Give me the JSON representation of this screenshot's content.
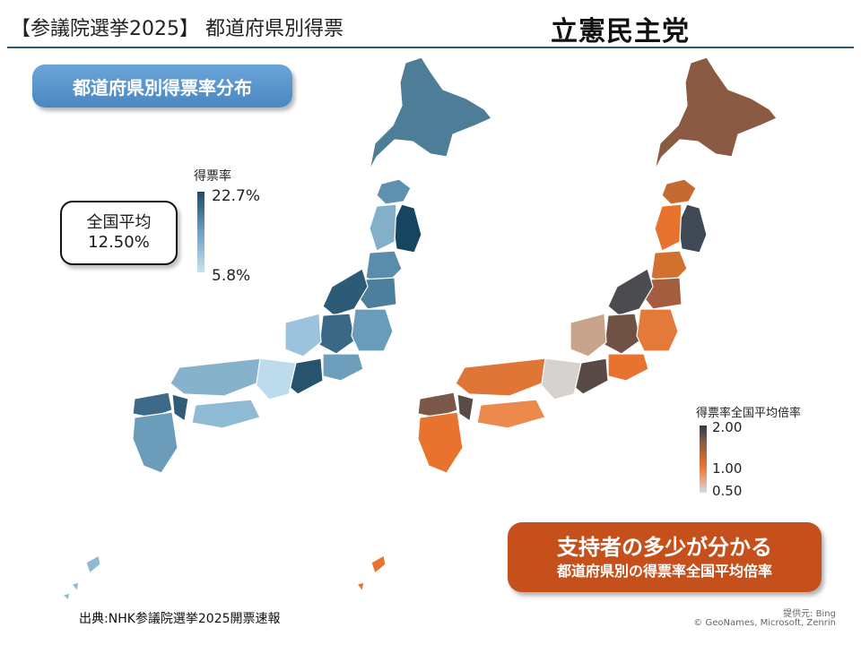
{
  "header": {
    "title": "【参議院選挙2025】 都道府県別得票",
    "party": "立憲民主党"
  },
  "left_panel": {
    "label": "都道府県別得票率分布",
    "national_average_label": "全国平均",
    "national_average_value": "12.50%",
    "legend_title": "得票率",
    "legend_max": "22.7%",
    "legend_min": "5.8%"
  },
  "right_panel": {
    "legend_title": "得票率全国平均倍率",
    "legend_max": "2.00",
    "legend_mid": "1.00",
    "legend_min": "0.50",
    "callout_main": "支持者の多少が分かる",
    "callout_sub": "都道府県別の得票率全国平均倍率"
  },
  "footer": {
    "source": "出典:NHK参議院選挙2025開票速報",
    "credit_line1": "提供元: Bing",
    "credit_line2": "© GeoNames, Microsoft, Zenrin"
  },
  "colors": {
    "header_rule": "#2e5b73",
    "left_map_dark": "#1f4a62",
    "left_map_light": "#c9e3f2",
    "right_map_dark": "#3f4a56",
    "right_map_orange": "#e8732e",
    "callout_bg": "#c5501b",
    "pill_blue": "#5a96cd"
  }
}
